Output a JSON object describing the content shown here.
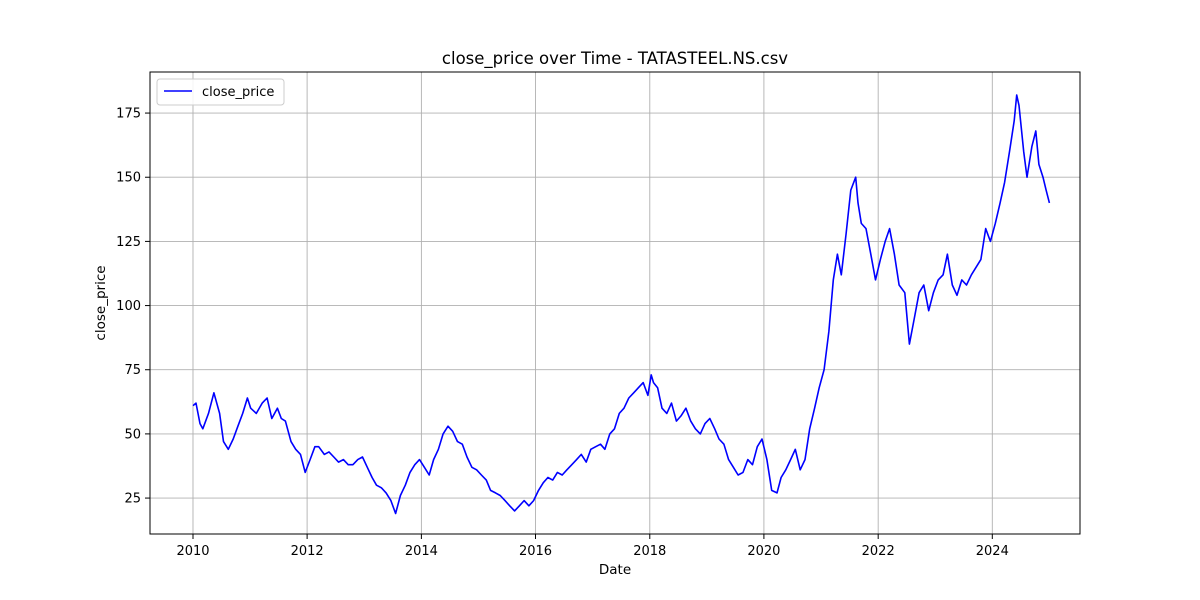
{
  "chart_data": {
    "type": "line",
    "title": "close_price over Time - TATASTEEL.NS.csv",
    "xlabel": "Date",
    "ylabel": "close_price",
    "x_ticks": [
      "2010",
      "2012",
      "2014",
      "2016",
      "2018",
      "2020",
      "2022",
      "2024"
    ],
    "y_ticks": [
      25,
      50,
      75,
      100,
      125,
      150,
      175
    ],
    "xlim": [
      "2009-04-01",
      "2025-07-15"
    ],
    "ylim": [
      11,
      191
    ],
    "grid": true,
    "legend_position": "top-left",
    "colors": {
      "line": "#0000ff",
      "grid": "#b0b0b0"
    },
    "series": [
      {
        "name": "close_price",
        "x": [
          "2010-01-01",
          "2010-01-20",
          "2010-02-15",
          "2010-03-05",
          "2010-04-10",
          "2010-05-15",
          "2010-06-20",
          "2010-07-15",
          "2010-08-15",
          "2010-09-15",
          "2010-10-15",
          "2010-11-15",
          "2010-12-15",
          "2011-01-05",
          "2011-02-10",
          "2011-03-20",
          "2011-04-20",
          "2011-05-20",
          "2011-06-25",
          "2011-07-20",
          "2011-08-15",
          "2011-09-20",
          "2011-10-20",
          "2011-11-20",
          "2011-12-20",
          "2012-01-20",
          "2012-02-20",
          "2012-03-15",
          "2012-04-20",
          "2012-05-20",
          "2012-06-20",
          "2012-07-20",
          "2012-08-20",
          "2012-09-20",
          "2012-10-20",
          "2012-11-20",
          "2012-12-20",
          "2013-01-20",
          "2013-02-20",
          "2013-03-20",
          "2013-04-20",
          "2013-05-20",
          "2013-06-20",
          "2013-07-20",
          "2013-08-20",
          "2013-09-20",
          "2013-10-20",
          "2013-11-20",
          "2013-12-20",
          "2014-01-20",
          "2014-02-20",
          "2014-03-20",
          "2014-04-20",
          "2014-05-20",
          "2014-06-20",
          "2014-07-20",
          "2014-08-20",
          "2014-09-20",
          "2014-10-20",
          "2014-11-20",
          "2014-12-20",
          "2015-01-20",
          "2015-02-20",
          "2015-03-20",
          "2015-04-20",
          "2015-05-20",
          "2015-06-20",
          "2015-07-20",
          "2015-08-20",
          "2015-09-20",
          "2015-10-20",
          "2015-11-20",
          "2015-12-20",
          "2016-01-20",
          "2016-02-20",
          "2016-03-20",
          "2016-04-20",
          "2016-05-20",
          "2016-06-20",
          "2016-07-20",
          "2016-08-20",
          "2016-09-20",
          "2016-10-20",
          "2016-11-20",
          "2016-12-20",
          "2017-01-20",
          "2017-02-20",
          "2017-03-20",
          "2017-04-20",
          "2017-05-20",
          "2017-06-20",
          "2017-07-20",
          "2017-08-20",
          "2017-09-20",
          "2017-10-20",
          "2017-11-20",
          "2017-12-20",
          "2018-01-10",
          "2018-01-25",
          "2018-02-20",
          "2018-03-20",
          "2018-04-20",
          "2018-05-20",
          "2018-06-20",
          "2018-07-20",
          "2018-08-20",
          "2018-09-20",
          "2018-10-20",
          "2018-11-20",
          "2018-12-20",
          "2019-01-20",
          "2019-02-20",
          "2019-03-20",
          "2019-04-20",
          "2019-05-20",
          "2019-06-20",
          "2019-07-20",
          "2019-08-20",
          "2019-09-20",
          "2019-10-20",
          "2019-11-20",
          "2019-12-20",
          "2020-01-20",
          "2020-02-20",
          "2020-03-25",
          "2020-04-20",
          "2020-05-20",
          "2020-06-20",
          "2020-07-20",
          "2020-08-20",
          "2020-09-20",
          "2020-10-20",
          "2020-11-20",
          "2020-12-20",
          "2021-01-20",
          "2021-02-20",
          "2021-03-20",
          "2021-04-15",
          "2021-05-10",
          "2021-06-10",
          "2021-07-10",
          "2021-08-10",
          "2021-08-25",
          "2021-09-15",
          "2021-10-15",
          "2021-11-15",
          "2021-12-15",
          "2022-01-15",
          "2022-02-15",
          "2022-03-15",
          "2022-04-15",
          "2022-05-15",
          "2022-06-20",
          "2022-07-20",
          "2022-08-20",
          "2022-09-20",
          "2022-10-20",
          "2022-11-20",
          "2022-12-20",
          "2023-01-20",
          "2023-02-20",
          "2023-03-20",
          "2023-04-20",
          "2023-05-20",
          "2023-06-20",
          "2023-07-20",
          "2023-08-20",
          "2023-09-20",
          "2023-10-20",
          "2023-11-20",
          "2023-12-20",
          "2024-01-20",
          "2024-02-20",
          "2024-03-20",
          "2024-04-20",
          "2024-05-20",
          "2024-06-05",
          "2024-06-20",
          "2024-07-20",
          "2024-08-10",
          "2024-09-10",
          "2024-10-05",
          "2024-10-25",
          "2024-11-20",
          "2024-12-10",
          "2024-12-31"
        ],
        "values": [
          61,
          62,
          54,
          52,
          58,
          66,
          58,
          47,
          44,
          48,
          53,
          58,
          64,
          60,
          58,
          62,
          64,
          56,
          60,
          56,
          55,
          47,
          44,
          42,
          35,
          40,
          45,
          45,
          42,
          43,
          41,
          39,
          40,
          38,
          38,
          40,
          41,
          37,
          33,
          30,
          29,
          27,
          24,
          19,
          26,
          30,
          35,
          38,
          40,
          37,
          34,
          40,
          44,
          50,
          53,
          51,
          47,
          46,
          41,
          37,
          36,
          34,
          32,
          28,
          27,
          26,
          24,
          22,
          20,
          22,
          24,
          22,
          24,
          28,
          31,
          33,
          32,
          35,
          34,
          36,
          38,
          40,
          42,
          39,
          44,
          45,
          46,
          44,
          50,
          52,
          58,
          60,
          64,
          66,
          68,
          70,
          65,
          73,
          70,
          68,
          60,
          58,
          62,
          55,
          57,
          60,
          55,
          52,
          50,
          54,
          56,
          52,
          48,
          46,
          40,
          37,
          34,
          35,
          40,
          38,
          45,
          48,
          40,
          28,
          27,
          33,
          36,
          40,
          44,
          36,
          40,
          52,
          60,
          68,
          75,
          90,
          110,
          120,
          112,
          128,
          145,
          150,
          140,
          132,
          130,
          120,
          110,
          118,
          125,
          130,
          120,
          108,
          105,
          85,
          95,
          105,
          108,
          98,
          105,
          110,
          112,
          120,
          108,
          104,
          110,
          108,
          112,
          115,
          118,
          130,
          125,
          132,
          140,
          148,
          160,
          172,
          182,
          178,
          160,
          150,
          162,
          168,
          155,
          150,
          145,
          140
        ]
      }
    ]
  }
}
